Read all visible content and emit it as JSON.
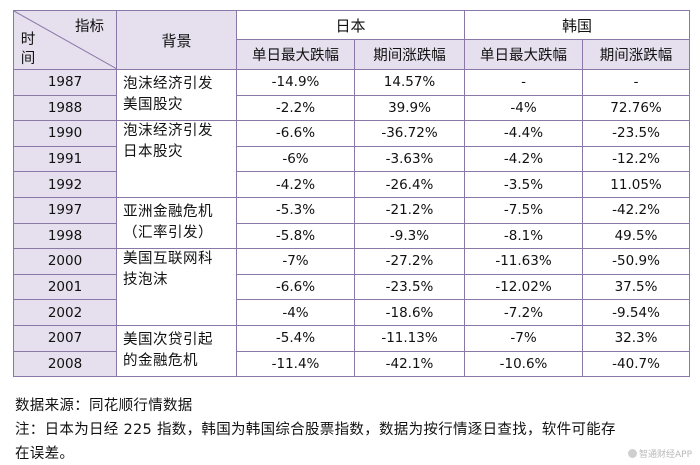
{
  "header": {
    "corner_top": "指标",
    "corner_bottom": "时间",
    "background": "背景",
    "japan": "日本",
    "korea": "韩国",
    "single_day_max_drop": "单日最大跌幅",
    "period_change": "期间涨跌幅"
  },
  "groups": [
    {
      "lines": [
        "泡沫经济引发",
        "美国股灾"
      ],
      "rows": [
        {
          "year": "1987",
          "jp_day": "-14.9%",
          "jp_period": "14.57%",
          "kr_day": "-",
          "kr_period": "-"
        },
        {
          "year": "1988",
          "jp_day": "-2.2%",
          "jp_period": "39.9%",
          "kr_day": "-4%",
          "kr_period": "72.76%"
        }
      ]
    },
    {
      "lines": [
        "泡沫经济引发",
        "日本股灾"
      ],
      "rows": [
        {
          "year": "1990",
          "jp_day": "-6.6%",
          "jp_period": "-36.72%",
          "kr_day": "-4.4%",
          "kr_period": "-23.5%"
        },
        {
          "year": "1991",
          "jp_day": "-6%",
          "jp_period": "-3.63%",
          "kr_day": "-4.2%",
          "kr_period": "-12.2%"
        },
        {
          "year": "1992",
          "jp_day": "-4.2%",
          "jp_period": "-26.4%",
          "kr_day": "-3.5%",
          "kr_period": "11.05%"
        }
      ]
    },
    {
      "lines": [
        "亚洲金融危机",
        "（汇率引发）"
      ],
      "rows": [
        {
          "year": "1997",
          "jp_day": "-5.3%",
          "jp_period": "-21.2%",
          "kr_day": "-7.5%",
          "kr_period": "-42.2%"
        },
        {
          "year": "1998",
          "jp_day": "-5.8%",
          "jp_period": "-9.3%",
          "kr_day": "-8.1%",
          "kr_period": "49.5%"
        }
      ]
    },
    {
      "lines": [
        "美国互联网科",
        "技泡沫"
      ],
      "rows": [
        {
          "year": "2000",
          "jp_day": "-7%",
          "jp_period": "-27.2%",
          "kr_day": "-11.63%",
          "kr_period": "-50.9%"
        },
        {
          "year": "2001",
          "jp_day": "-6.6%",
          "jp_period": "-23.5%",
          "kr_day": "-12.02%",
          "kr_period": "37.5%"
        },
        {
          "year": "2002",
          "jp_day": "-4%",
          "jp_period": "-18.6%",
          "kr_day": "-7.2%",
          "kr_period": "-9.54%"
        }
      ]
    },
    {
      "lines": [
        "美国次贷引起",
        "的金融危机"
      ],
      "rows": [
        {
          "year": "2007",
          "jp_day": "-5.4%",
          "jp_period": "-11.13%",
          "kr_day": "-7%",
          "kr_period": "32.3%"
        },
        {
          "year": "2008",
          "jp_day": "-11.4%",
          "jp_period": "-42.1%",
          "kr_day": "-10.6%",
          "kr_period": "-40.7%"
        }
      ]
    }
  ],
  "footer": {
    "source": "数据来源：同花顺行情数据",
    "note_line1": "注：日本为日经 225 指数，韩国为韩国综合股票指数，数据为按行情逐日查找，软件可能存",
    "note_line2": "在误差。"
  },
  "watermark": "智通财经APP"
}
